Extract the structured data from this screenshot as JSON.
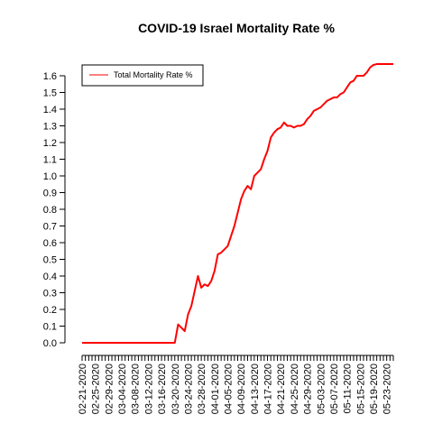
{
  "chart_data": {
    "type": "line",
    "title": "COVID-19 Israel Mortality Rate %",
    "xlabel": "",
    "ylabel": "",
    "ylim": [
      0,
      1.6
    ],
    "yticks": [
      "0.0",
      "0.1",
      "0.2",
      "0.3",
      "0.4",
      "0.5",
      "0.6",
      "0.7",
      "0.8",
      "0.9",
      "1.0",
      "1.1",
      "1.2",
      "1.3",
      "1.4",
      "1.5",
      "1.6"
    ],
    "x": [
      "02-21-2020",
      "02-22-2020",
      "02-23-2020",
      "02-24-2020",
      "02-25-2020",
      "02-26-2020",
      "02-27-2020",
      "02-28-2020",
      "02-29-2020",
      "03-01-2020",
      "03-02-2020",
      "03-03-2020",
      "03-04-2020",
      "03-05-2020",
      "03-06-2020",
      "03-07-2020",
      "03-08-2020",
      "03-09-2020",
      "03-10-2020",
      "03-11-2020",
      "03-12-2020",
      "03-13-2020",
      "03-14-2020",
      "03-15-2020",
      "03-16-2020",
      "03-17-2020",
      "03-18-2020",
      "03-19-2020",
      "03-20-2020",
      "03-21-2020",
      "03-22-2020",
      "03-23-2020",
      "03-24-2020",
      "03-25-2020",
      "03-26-2020",
      "03-27-2020",
      "03-28-2020",
      "03-29-2020",
      "03-30-2020",
      "03-31-2020",
      "04-01-2020",
      "04-02-2020",
      "04-03-2020",
      "04-04-2020",
      "04-05-2020",
      "04-06-2020",
      "04-07-2020",
      "04-08-2020",
      "04-09-2020",
      "04-10-2020",
      "04-11-2020",
      "04-12-2020",
      "04-13-2020",
      "04-14-2020",
      "04-15-2020",
      "04-16-2020",
      "04-17-2020",
      "04-18-2020",
      "04-19-2020",
      "04-20-2020",
      "04-21-2020",
      "04-22-2020",
      "04-23-2020",
      "04-24-2020",
      "04-25-2020",
      "04-26-2020",
      "04-27-2020",
      "04-28-2020",
      "04-29-2020",
      "04-30-2020",
      "05-01-2020",
      "05-02-2020",
      "05-03-2020",
      "05-04-2020",
      "05-05-2020",
      "05-06-2020",
      "05-07-2020",
      "05-08-2020",
      "05-09-2020",
      "05-10-2020",
      "05-11-2020",
      "05-12-2020",
      "05-13-2020",
      "05-14-2020",
      "05-15-2020",
      "05-16-2020",
      "05-17-2020",
      "05-18-2020",
      "05-19-2020",
      "05-20-2020",
      "05-21-2020",
      "05-22-2020",
      "05-23-2020",
      "05-24-2020",
      "05-25-2020"
    ],
    "xtick_labels": [
      "02-21-2020",
      "02-25-2020",
      "02-29-2020",
      "03-04-2020",
      "03-08-2020",
      "03-12-2020",
      "03-16-2020",
      "03-20-2020",
      "03-24-2020",
      "03-28-2020",
      "04-01-2020",
      "04-05-2020",
      "04-09-2020",
      "04-13-2020",
      "04-17-2020",
      "04-21-2020",
      "04-25-2020",
      "04-29-2020",
      "05-03-2020",
      "05-07-2020",
      "05-11-2020",
      "05-15-2020",
      "05-19-2020",
      "05-23-2020"
    ],
    "series": [
      {
        "name": "Total Mortality Rate %",
        "color": "#ff0000",
        "values": [
          0,
          0,
          0,
          0,
          0,
          0,
          0,
          0,
          0,
          0,
          0,
          0,
          0,
          0,
          0,
          0,
          0,
          0,
          0,
          0,
          0,
          0,
          0,
          0,
          0,
          0,
          0,
          0,
          0,
          0.11,
          0.09,
          0.07,
          0.17,
          0.22,
          0.31,
          0.4,
          0.33,
          0.35,
          0.34,
          0.37,
          0.43,
          0.53,
          0.54,
          0.56,
          0.58,
          0.64,
          0.7,
          0.78,
          0.86,
          0.91,
          0.94,
          0.92,
          1.0,
          1.02,
          1.04,
          1.1,
          1.15,
          1.23,
          1.26,
          1.28,
          1.29,
          1.32,
          1.3,
          1.3,
          1.29,
          1.3,
          1.3,
          1.31,
          1.34,
          1.36,
          1.39,
          1.4,
          1.41,
          1.43,
          1.45,
          1.46,
          1.47,
          1.47,
          1.49,
          1.5,
          1.53,
          1.56,
          1.57,
          1.6,
          1.6,
          1.6,
          1.62,
          1.65,
          1.665,
          1.67,
          1.67,
          1.67,
          1.67,
          1.67,
          1.67
        ]
      }
    ],
    "legend_position": "top-left",
    "grid": false
  }
}
